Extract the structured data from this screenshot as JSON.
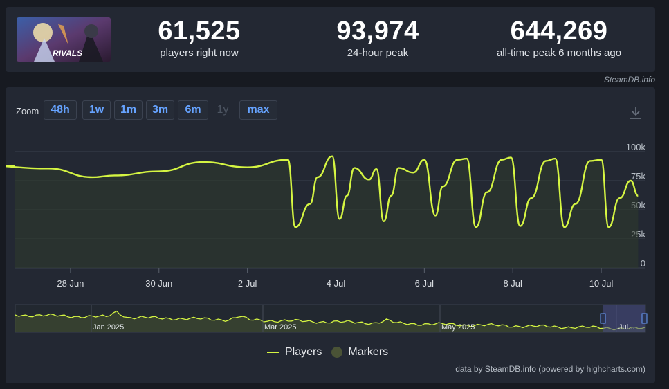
{
  "stats": {
    "current": {
      "value": "61,525",
      "label": "players right now"
    },
    "peak24": {
      "value": "93,974",
      "label": "24-hour peak"
    },
    "alltime": {
      "value": "644,269",
      "label": "all-time peak 6 months ago"
    }
  },
  "thumbnail": {
    "text": "RIVALS",
    "icon": "game-capsule-image"
  },
  "credit_top": "SteamDB.info",
  "zoom": {
    "label": "Zoom",
    "buttons": [
      {
        "label": "48h",
        "enabled": true
      },
      {
        "label": "1w",
        "enabled": true
      },
      {
        "label": "1m",
        "enabled": true
      },
      {
        "label": "3m",
        "enabled": true
      },
      {
        "label": "6m",
        "enabled": true
      },
      {
        "label": "1y",
        "enabled": false
      },
      {
        "label": "max",
        "enabled": true
      }
    ]
  },
  "download_icon": "download-icon",
  "colors": {
    "series": "#d5f542",
    "fill": "#2f3a2c",
    "background": "#232833",
    "grid": "#3a404c",
    "navigator_mask": "#4a4f8a"
  },
  "chart_data": {
    "type": "line",
    "series": [
      {
        "name": "Players",
        "x_date": [
          "2025-06-26T00:00",
          "2025-06-27T12:00",
          "2025-06-28T12:00",
          "2025-06-29T00:00",
          "2025-06-30T00:00",
          "2025-07-01T00:00",
          "2025-07-02T00:00",
          "2025-07-02T22:00",
          "2025-07-03T02:00",
          "2025-07-03T10:00",
          "2025-07-03T14:00",
          "2025-07-03T22:00",
          "2025-07-04T02:00",
          "2025-07-04T06:00",
          "2025-07-04T10:00",
          "2025-07-04T18:00",
          "2025-07-04T22:00",
          "2025-07-05T02:00",
          "2025-07-05T06:00",
          "2025-07-05T10:00",
          "2025-07-05T18:00",
          "2025-07-06T00:00",
          "2025-07-06T06:00",
          "2025-07-06T10:00",
          "2025-07-06T18:00",
          "2025-07-06T23:00",
          "2025-07-07T04:00",
          "2025-07-07T10:00",
          "2025-07-07T18:00",
          "2025-07-07T23:00",
          "2025-07-08T04:00",
          "2025-07-08T10:00",
          "2025-07-08T18:00",
          "2025-07-08T23:00",
          "2025-07-09T04:00",
          "2025-07-09T10:00",
          "2025-07-09T18:00",
          "2025-07-10T00:00",
          "2025-07-10T04:00",
          "2025-07-10T10:00",
          "2025-07-10T16:00",
          "2025-07-10T20:00"
        ],
        "y": [
          88000,
          85500,
          78000,
          79500,
          83000,
          91000,
          86500,
          93000,
          35000,
          55000,
          78000,
          96000,
          42000,
          62000,
          86000,
          76000,
          85000,
          40000,
          62000,
          86000,
          82000,
          93000,
          45000,
          70000,
          93000,
          94000,
          35000,
          65000,
          93000,
          95000,
          36000,
          60000,
          92000,
          94000,
          35000,
          55000,
          92000,
          93000,
          35000,
          60000,
          75000,
          62000
        ]
      }
    ],
    "x_ticks": [
      "28 Jun",
      "30 Jun",
      "2 Jul",
      "4 Jul",
      "6 Jul",
      "8 Jul",
      "10 Jul"
    ],
    "y_ticks": [
      "0",
      "25k",
      "50k",
      "75k",
      "100k"
    ],
    "ylim": [
      0,
      100000
    ],
    "xlim": [
      "2025-06-26T18:00",
      "2025-07-11T00:00"
    ],
    "grid": true,
    "legend_position": "bottom-center",
    "navigator": {
      "labels": [
        "Jan 2025",
        "Mar 2025",
        "May 2025",
        "Jul..."
      ],
      "selection_label": "Jul..."
    }
  },
  "legend": [
    {
      "label": "Players",
      "kind": "line"
    },
    {
      "label": "Markers",
      "kind": "dot"
    }
  ],
  "credit_bottom": "data by SteamDB.info (powered by highcharts.com)"
}
